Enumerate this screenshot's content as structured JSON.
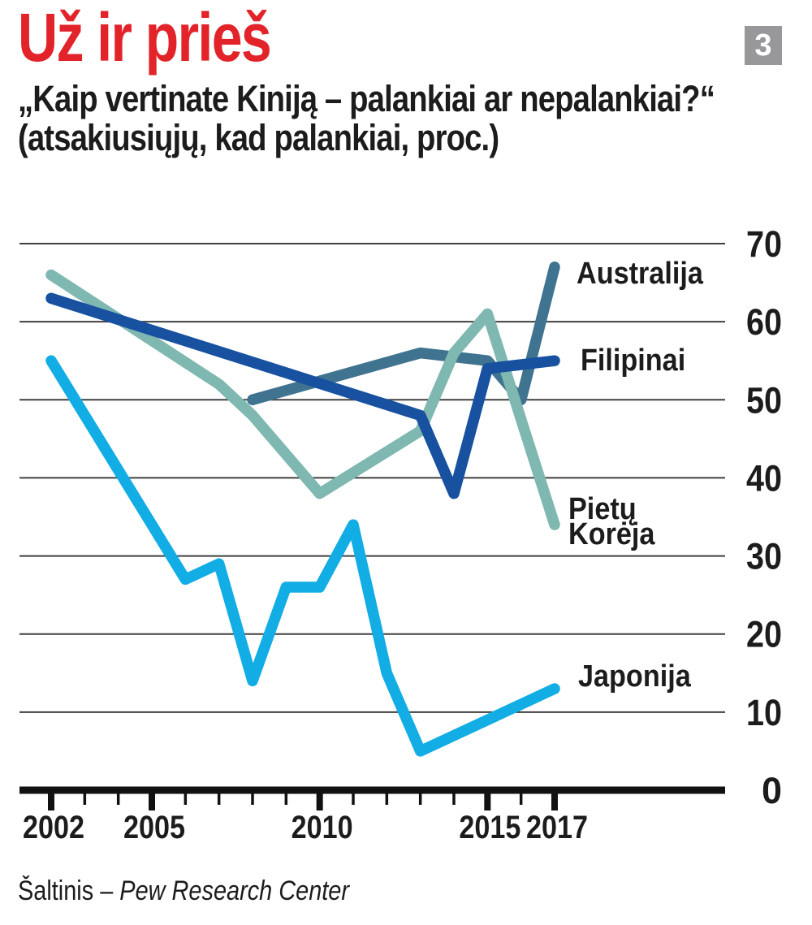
{
  "header": {
    "title": "Už ir prieš",
    "badge": "3",
    "badge_bg": "#98989a",
    "badge_fg": "#ffffff",
    "title_color": "#e2232a",
    "subtitle_line1": "„Kaip vertinate Kiniją – palankiai ar nepalankiai?“",
    "subtitle_line2": "(atsakiusiųjų, kad palankiai, proc.)"
  },
  "source": {
    "prefix": "Šaltinis – ",
    "name": "Pew Research Center"
  },
  "chart_data": {
    "type": "line",
    "title": "Kaip vertinate Kiniją – palankiai ar nepalankiai? (atsakiusiųjų, kad palankiai, proc.)",
    "xlabel": "",
    "ylabel": "",
    "grid": true,
    "legend_position": "labels-right-of-line-ends",
    "x_axis": {
      "min": 2002,
      "max": 2017,
      "tick_years": [
        2002,
        2003,
        2004,
        2005,
        2006,
        2007,
        2008,
        2009,
        2010,
        2011,
        2012,
        2013,
        2014,
        2015,
        2016,
        2017
      ],
      "labeled_years": [
        2002,
        2005,
        2010,
        2015,
        2017
      ]
    },
    "y_axis": {
      "min": 0,
      "max": 70,
      "gridline_values": [
        70,
        60,
        50,
        40,
        30,
        20,
        10
      ],
      "tick_labels": [
        70,
        60,
        50,
        40,
        30,
        20,
        10,
        0
      ]
    },
    "series": [
      {
        "name": "Japonija",
        "label": "Japonija",
        "color": "#12ade4",
        "points": [
          [
            2002,
            55
          ],
          [
            2006,
            27
          ],
          [
            2007,
            29
          ],
          [
            2008,
            14
          ],
          [
            2009,
            26
          ],
          [
            2010,
            26
          ],
          [
            2011,
            34
          ],
          [
            2012,
            15
          ],
          [
            2013,
            5
          ],
          [
            2015,
            9
          ],
          [
            2016,
            11
          ],
          [
            2017,
            13
          ]
        ]
      },
      {
        "name": "Australija",
        "label": "Australija",
        "color": "#3f7390",
        "points": [
          [
            2008,
            50
          ],
          [
            2013,
            56
          ],
          [
            2015,
            55
          ],
          [
            2016,
            50
          ],
          [
            2017,
            67
          ]
        ]
      },
      {
        "name": "Pietų Korėja",
        "label": "Pietų\nKorėja",
        "color": "#7fb7b1",
        "points": [
          [
            2002,
            66
          ],
          [
            2007,
            52
          ],
          [
            2008,
            48
          ],
          [
            2010,
            38
          ],
          [
            2013,
            46
          ],
          [
            2014,
            56
          ],
          [
            2015,
            61
          ],
          [
            2017,
            34
          ]
        ]
      },
      {
        "name": "Filipinai",
        "label": "Filipinai",
        "color": "#1751a0",
        "points": [
          [
            2002,
            63
          ],
          [
            2013,
            48
          ],
          [
            2014,
            38
          ],
          [
            2015,
            54
          ],
          [
            2017,
            55
          ]
        ]
      }
    ],
    "style": {
      "gridline_color": "#404040",
      "axis_color": "#111111",
      "line_width": 13.5
    }
  }
}
